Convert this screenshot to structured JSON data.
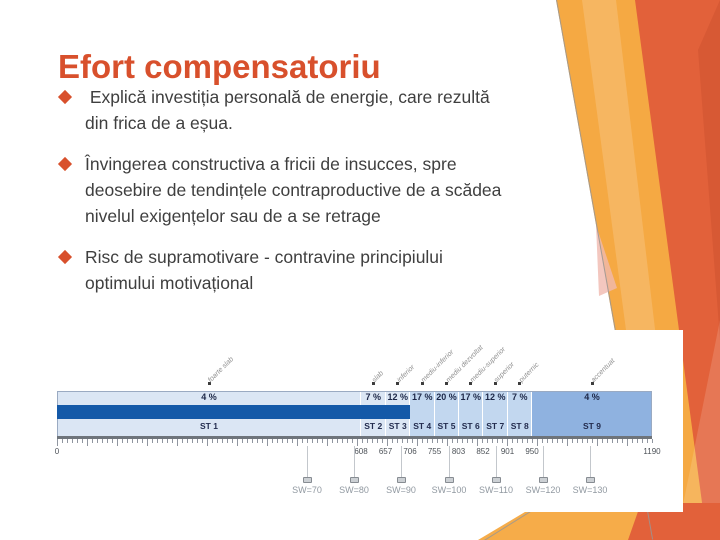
{
  "slide": {
    "title": "Efort compensatoriu",
    "bullets": [
      {
        "lines": [
          " Explică investiția personală de energie, care rezultă",
          "din frica de a eșua."
        ]
      },
      {
        "lines": [
          "Învingerea constructiva a fricii de insucces, spre",
          "deosebire de tendințele contraproductive de a scădea",
          "nivelul exigențelor sau de a se retrage"
        ]
      },
      {
        "lines": [
          "Risc de supramotivare - contravine principiului",
          "optimului motivațional"
        ]
      }
    ]
  },
  "colors": {
    "accent_orange": "#d8502c",
    "deco_amber": "#f5a943",
    "deco_deep_orange": "#e2613a",
    "text_gray": "#3f3f3f",
    "band_pale": "#dbe6f4",
    "band_mid": "#c2d7ef",
    "band_strong": "#8fb2e0",
    "score_bar_blue": "#1459a8"
  },
  "chart_data": {
    "type": "bar",
    "title": "",
    "xlabel": "",
    "ylabel": "",
    "categories": [
      "ST 1",
      "ST 2",
      "ST 3",
      "ST 4",
      "ST 5",
      "ST 6",
      "ST 7",
      "ST 8",
      "ST 9"
    ],
    "values": [
      4,
      7,
      12,
      17,
      20,
      17,
      12,
      7,
      4
    ],
    "percent_labels": [
      "4 %",
      "7 %",
      "12 %",
      "17 %",
      "20 %",
      "17 %",
      "12 %",
      "7 %",
      "4 %"
    ],
    "band_labels": [
      "foarte slab",
      "slab",
      "inferior",
      "mediu-inferior",
      "mediu dezvoltat",
      "mediu-superior",
      "superior",
      "puternic",
      "accentuat"
    ],
    "axis": {
      "min": 0,
      "max": 1190,
      "start_label": "0",
      "end_label": "1190",
      "boundaries": [
        608,
        657,
        706,
        755,
        803,
        852,
        901,
        950
      ]
    },
    "score_bar": {
      "from": 0,
      "to": 706
    },
    "sw_scale": {
      "labels": [
        "SW=70",
        "SW=80",
        "SW=90",
        "SW=100",
        "SW=110",
        "SW=120",
        "SW=130"
      ],
      "values": [
        70,
        80,
        90,
        100,
        110,
        120,
        130
      ]
    }
  }
}
